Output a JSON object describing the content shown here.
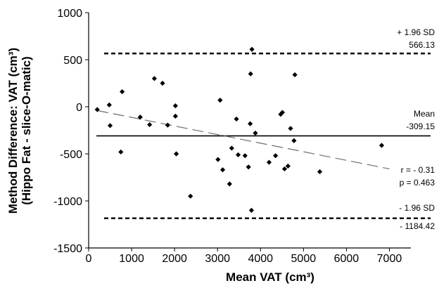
{
  "chart_data": {
    "type": "scatter",
    "title": "",
    "xlabel": "Mean VAT (cm³)",
    "ylabel_line1": "Method Difference: VAT (cm³)",
    "ylabel_line2": "(Hippo Fat - slice-O-matic)",
    "xlim": [
      0,
      7500
    ],
    "ylim": [
      -1500,
      1000
    ],
    "x_ticks": [
      0,
      1000,
      2000,
      3000,
      4000,
      5000,
      6000,
      7000
    ],
    "y_ticks": [
      1000,
      500,
      0,
      -500,
      -1000,
      -1500
    ],
    "grid": false,
    "points": [
      {
        "x": 200,
        "y": -30
      },
      {
        "x": 480,
        "y": 20
      },
      {
        "x": 500,
        "y": -200
      },
      {
        "x": 750,
        "y": -480
      },
      {
        "x": 780,
        "y": 160
      },
      {
        "x": 1200,
        "y": -110
      },
      {
        "x": 1420,
        "y": -190
      },
      {
        "x": 1530,
        "y": 300
      },
      {
        "x": 1720,
        "y": 250
      },
      {
        "x": 1840,
        "y": -195
      },
      {
        "x": 2020,
        "y": 10
      },
      {
        "x": 2020,
        "y": -100
      },
      {
        "x": 2040,
        "y": -500
      },
      {
        "x": 2370,
        "y": -950
      },
      {
        "x": 3010,
        "y": -560
      },
      {
        "x": 3060,
        "y": 70
      },
      {
        "x": 3120,
        "y": -670
      },
      {
        "x": 3280,
        "y": -820
      },
      {
        "x": 3330,
        "y": -440
      },
      {
        "x": 3440,
        "y": -130
      },
      {
        "x": 3480,
        "y": -510
      },
      {
        "x": 3640,
        "y": -520
      },
      {
        "x": 3720,
        "y": -640
      },
      {
        "x": 3760,
        "y": -180
      },
      {
        "x": 3770,
        "y": 350
      },
      {
        "x": 3790,
        "y": -1100
      },
      {
        "x": 3800,
        "y": 610
      },
      {
        "x": 3880,
        "y": -280
      },
      {
        "x": 4200,
        "y": -590
      },
      {
        "x": 4350,
        "y": -520
      },
      {
        "x": 4470,
        "y": -80
      },
      {
        "x": 4510,
        "y": -60
      },
      {
        "x": 4560,
        "y": -660
      },
      {
        "x": 4640,
        "y": -630
      },
      {
        "x": 4700,
        "y": -230
      },
      {
        "x": 4780,
        "y": -360
      },
      {
        "x": 4800,
        "y": 340
      },
      {
        "x": 5380,
        "y": -690
      },
      {
        "x": 6820,
        "y": -410
      }
    ],
    "mean_line": {
      "value": -309.15,
      "label": "Mean",
      "value_label": "-309.15"
    },
    "upper_loa": {
      "value": 566.13,
      "label": "+ 1.96 SD",
      "value_label": "566.13"
    },
    "lower_loa": {
      "value": -1184.42,
      "label": "- 1.96 SD",
      "value_label": "- 1184.42"
    },
    "regression": {
      "x_start": 200,
      "y_start": -40,
      "x_end": 7000,
      "y_end": -660
    },
    "stats": {
      "r_label": "r = - 0.31",
      "p_label": "p = 0.463"
    },
    "colors": {
      "marker": "#000000",
      "lines": "#000000",
      "regression": "#6e6e6e"
    }
  }
}
